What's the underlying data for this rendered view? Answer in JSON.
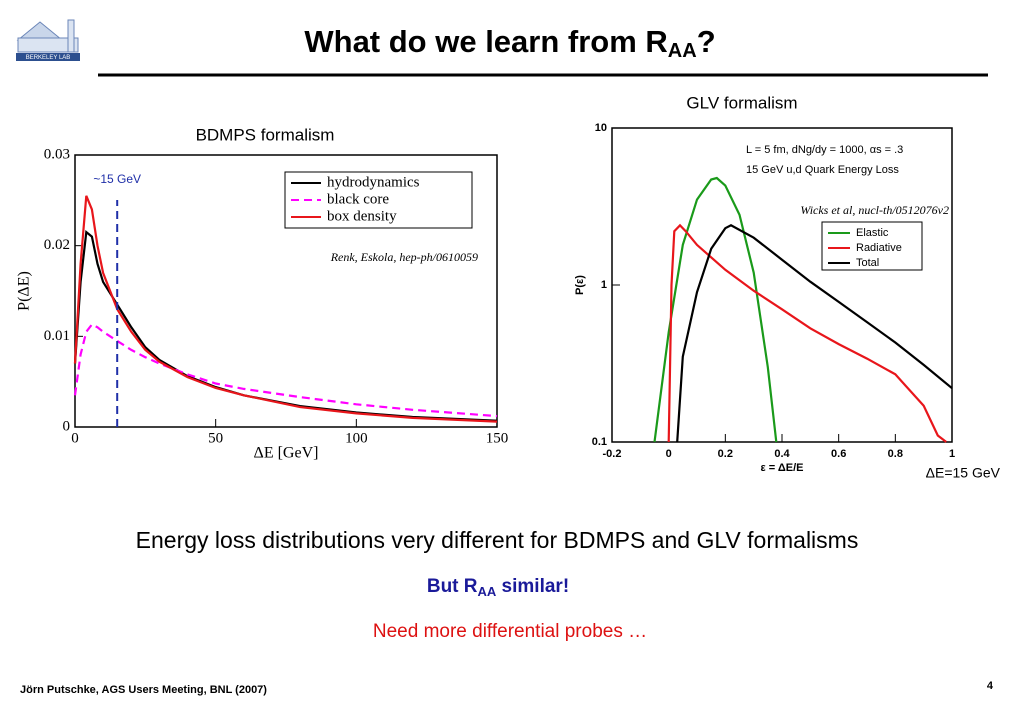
{
  "logo": "BERKELEY LAB",
  "title": {
    "text": "What do we learn from R",
    "sub": "AA",
    "end": "?"
  },
  "chart_data": [
    {
      "type": "line",
      "title": "BDMPS formalism",
      "xlabel": "ΔE [GeV]",
      "ylabel": "P(ΔE)",
      "xlim": [
        0,
        150
      ],
      "ylim": [
        0,
        0.03
      ],
      "xticks": [
        0,
        50,
        100,
        150
      ],
      "yticks": [
        0,
        0.01,
        0.02,
        0.03
      ],
      "log_y": false,
      "legend": "upper right",
      "marker": {
        "x": 15,
        "label": "~15 GeV",
        "color": "#1f2fa8"
      },
      "annotations": [
        "Renk, Eskola, hep-ph/0610059"
      ],
      "x": [
        0,
        2,
        4,
        6,
        8,
        10,
        15,
        20,
        25,
        30,
        40,
        50,
        60,
        80,
        100,
        120,
        150
      ],
      "series": [
        {
          "name": "hydrodynamics",
          "color": "#000000",
          "dashed": false,
          "values": [
            0.007,
            0.016,
            0.0215,
            0.021,
            0.018,
            0.016,
            0.0135,
            0.011,
            0.0088,
            0.0074,
            0.0056,
            0.0044,
            0.0035,
            0.0023,
            0.0016,
            0.0011,
            0.0007
          ]
        },
        {
          "name": "black core",
          "color": "#ff00ff",
          "dashed": true,
          "values": [
            0.0035,
            0.008,
            0.0105,
            0.0113,
            0.011,
            0.0105,
            0.0095,
            0.0085,
            0.0077,
            0.007,
            0.0058,
            0.0048,
            0.0042,
            0.0033,
            0.0025,
            0.0019,
            0.0012
          ]
        },
        {
          "name": "box density",
          "color": "#e8161b",
          "dashed": false,
          "values": [
            0.007,
            0.018,
            0.0255,
            0.024,
            0.02,
            0.017,
            0.013,
            0.0105,
            0.0085,
            0.0072,
            0.0055,
            0.0043,
            0.0035,
            0.0022,
            0.0015,
            0.001,
            0.0006
          ]
        }
      ]
    },
    {
      "type": "line",
      "title": "GLV formalism",
      "xlabel": "ε = ΔE/E",
      "ylabel": "P(ε)",
      "xlim": [
        -0.2,
        1
      ],
      "ylim": [
        0.1,
        10
      ],
      "xticks": [
        -0.2,
        0,
        0.2,
        0.4,
        0.6,
        0.8,
        1
      ],
      "yticks": [
        0.1,
        1,
        10
      ],
      "log_y": true,
      "legend": "right",
      "annotations": [
        "L = 5 fm, dNg/dy = 1000, αs = .3",
        "15 GeV u,d Quark Energy Loss",
        "Wicks et al, nucl-th/0512076v2"
      ],
      "note": "ΔE=15 GeV",
      "series": [
        {
          "name": "Elastic",
          "color": "#1a9a1a",
          "dashed": false,
          "x": [
            -0.05,
            0,
            0.05,
            0.1,
            0.15,
            0.17,
            0.2,
            0.25,
            0.3,
            0.35,
            0.38
          ],
          "values": [
            0.1,
            0.5,
            1.8,
            3.5,
            4.7,
            4.8,
            4.3,
            2.8,
            1.2,
            0.3,
            0.1
          ]
        },
        {
          "name": "Radiative",
          "color": "#e8161b",
          "dashed": false,
          "x": [
            0,
            0.01,
            0.02,
            0.04,
            0.06,
            0.1,
            0.2,
            0.3,
            0.4,
            0.5,
            0.6,
            0.7,
            0.8,
            0.9,
            0.95,
            0.98
          ],
          "values": [
            0.1,
            1.0,
            2.2,
            2.4,
            2.2,
            1.8,
            1.25,
            0.92,
            0.7,
            0.53,
            0.42,
            0.34,
            0.27,
            0.17,
            0.11,
            0.1
          ]
        },
        {
          "name": "Total",
          "color": "#000000",
          "dashed": false,
          "x": [
            0.03,
            0.05,
            0.1,
            0.15,
            0.2,
            0.22,
            0.3,
            0.4,
            0.5,
            0.6,
            0.7,
            0.8,
            0.9,
            1.0
          ],
          "values": [
            0.1,
            0.35,
            0.9,
            1.7,
            2.3,
            2.4,
            2.0,
            1.45,
            1.05,
            0.78,
            0.58,
            0.43,
            0.31,
            0.22
          ]
        }
      ]
    }
  ],
  "body": {
    "line1": "Energy loss distributions very different for BDMPS and GLV formalisms",
    "line2": {
      "text": "But R",
      "sub": "AA",
      "end": " similar!"
    },
    "line3": "Need more differential probes …"
  },
  "footer": {
    "author": "Jörn Putschke, AGS Users Meeting, BNL (2007)",
    "page": "4"
  }
}
